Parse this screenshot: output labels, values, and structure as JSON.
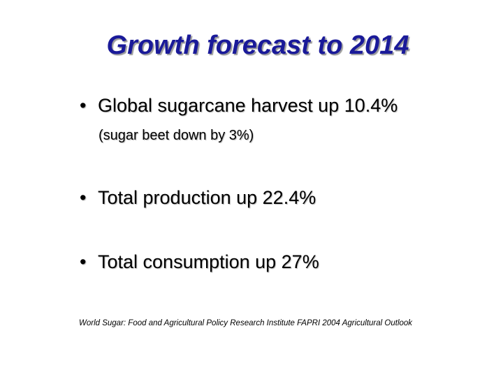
{
  "slide": {
    "title": "Growth forecast to 2014",
    "bullets": [
      {
        "symbol": "•",
        "text": "Global sugarcane harvest up 10.4%",
        "sub": "(sugar beet down by 3%)"
      },
      {
        "symbol": "•",
        "text": "Total production up 22.4%"
      },
      {
        "symbol": "•",
        "text": "Total consumption up 27%"
      }
    ],
    "source": "World Sugar: Food and Agricultural Policy Research Institute FAPRI 2004 Agricultural Outlook",
    "colors": {
      "title": "#1a1a99",
      "text": "#000000",
      "background": "#ffffff"
    }
  }
}
